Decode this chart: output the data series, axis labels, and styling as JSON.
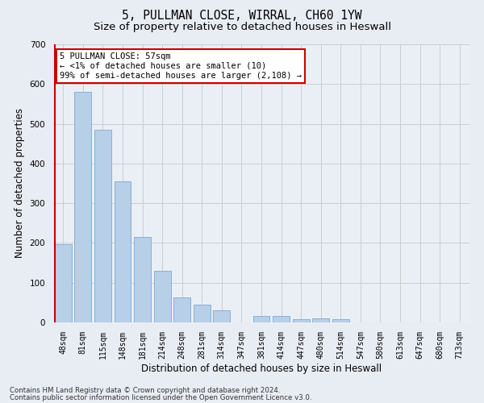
{
  "title": "5, PULLMAN CLOSE, WIRRAL, CH60 1YW",
  "subtitle": "Size of property relative to detached houses in Heswall",
  "xlabel": "Distribution of detached houses by size in Heswall",
  "ylabel": "Number of detached properties",
  "footer_line1": "Contains HM Land Registry data © Crown copyright and database right 2024.",
  "footer_line2": "Contains public sector information licensed under the Open Government Licence v3.0.",
  "categories": [
    "48sqm",
    "81sqm",
    "115sqm",
    "148sqm",
    "181sqm",
    "214sqm",
    "248sqm",
    "281sqm",
    "314sqm",
    "347sqm",
    "381sqm",
    "414sqm",
    "447sqm",
    "480sqm",
    "514sqm",
    "547sqm",
    "580sqm",
    "613sqm",
    "647sqm",
    "680sqm",
    "713sqm"
  ],
  "values": [
    196,
    581,
    484,
    355,
    215,
    130,
    62,
    44,
    31,
    0,
    16,
    16,
    8,
    10,
    8,
    0,
    0,
    0,
    0,
    0,
    0
  ],
  "bar_color": "#b8cfe8",
  "bar_edge_color": "#7aaad0",
  "highlight_color": "#cc0000",
  "annotation_text": "5 PULLMAN CLOSE: 57sqm\n← <1% of detached houses are smaller (10)\n99% of semi-detached houses are larger (2,108) →",
  "annotation_box_color": "#ffffff",
  "annotation_box_edge_color": "#cc0000",
  "ylim": [
    0,
    700
  ],
  "yticks": [
    0,
    100,
    200,
    300,
    400,
    500,
    600,
    700
  ],
  "grid_color": "#cccccc",
  "bg_color": "#e8edf4",
  "plot_bg_color": "#eaeff6",
  "title_fontsize": 10.5,
  "subtitle_fontsize": 9.5,
  "tick_fontsize": 7,
  "ylabel_fontsize": 8.5,
  "xlabel_fontsize": 8.5,
  "annotation_fontsize": 7.5,
  "footer_fontsize": 6.2
}
